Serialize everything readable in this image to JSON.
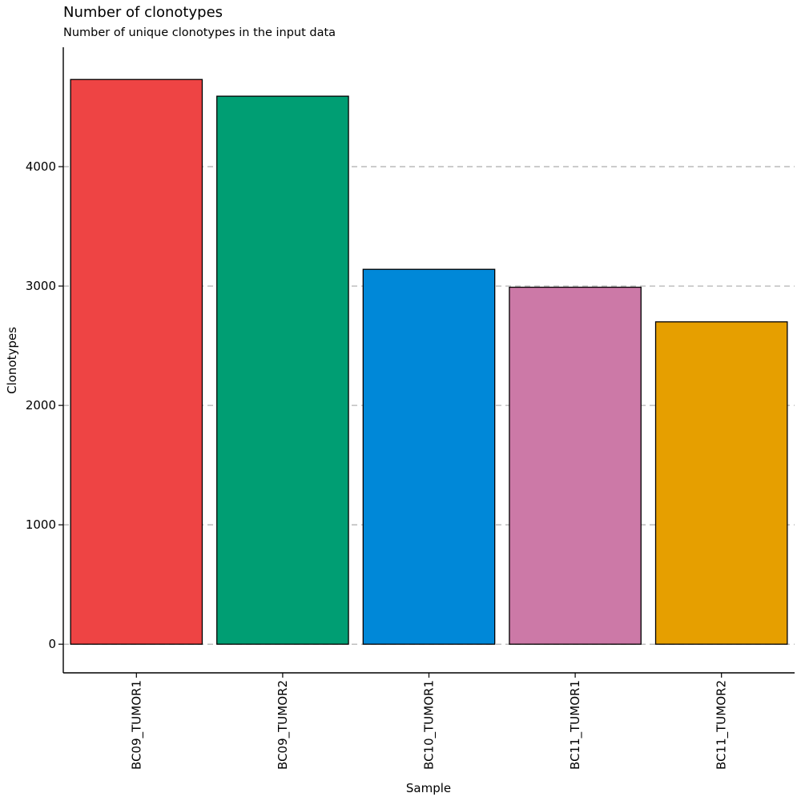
{
  "chart_data": {
    "type": "bar",
    "title": "Number of clonotypes",
    "subtitle": "Number of unique clonotypes in the input data",
    "xlabel": "Sample",
    "ylabel": "Clonotypes",
    "categories": [
      "BC09_TUMOR1",
      "BC09_TUMOR2",
      "BC10_TUMOR1",
      "BC11_TUMOR1",
      "BC11_TUMOR2"
    ],
    "values": [
      4730,
      4590,
      3140,
      2990,
      2700
    ],
    "colors": [
      "#EE4444",
      "#009E73",
      "#0088D8",
      "#CC79A7",
      "#E69F00"
    ],
    "yticks": [
      0,
      1000,
      2000,
      3000,
      4000
    ],
    "ylim": [
      -240,
      5000
    ],
    "grid": "horizontal dashed",
    "legend": "none"
  }
}
